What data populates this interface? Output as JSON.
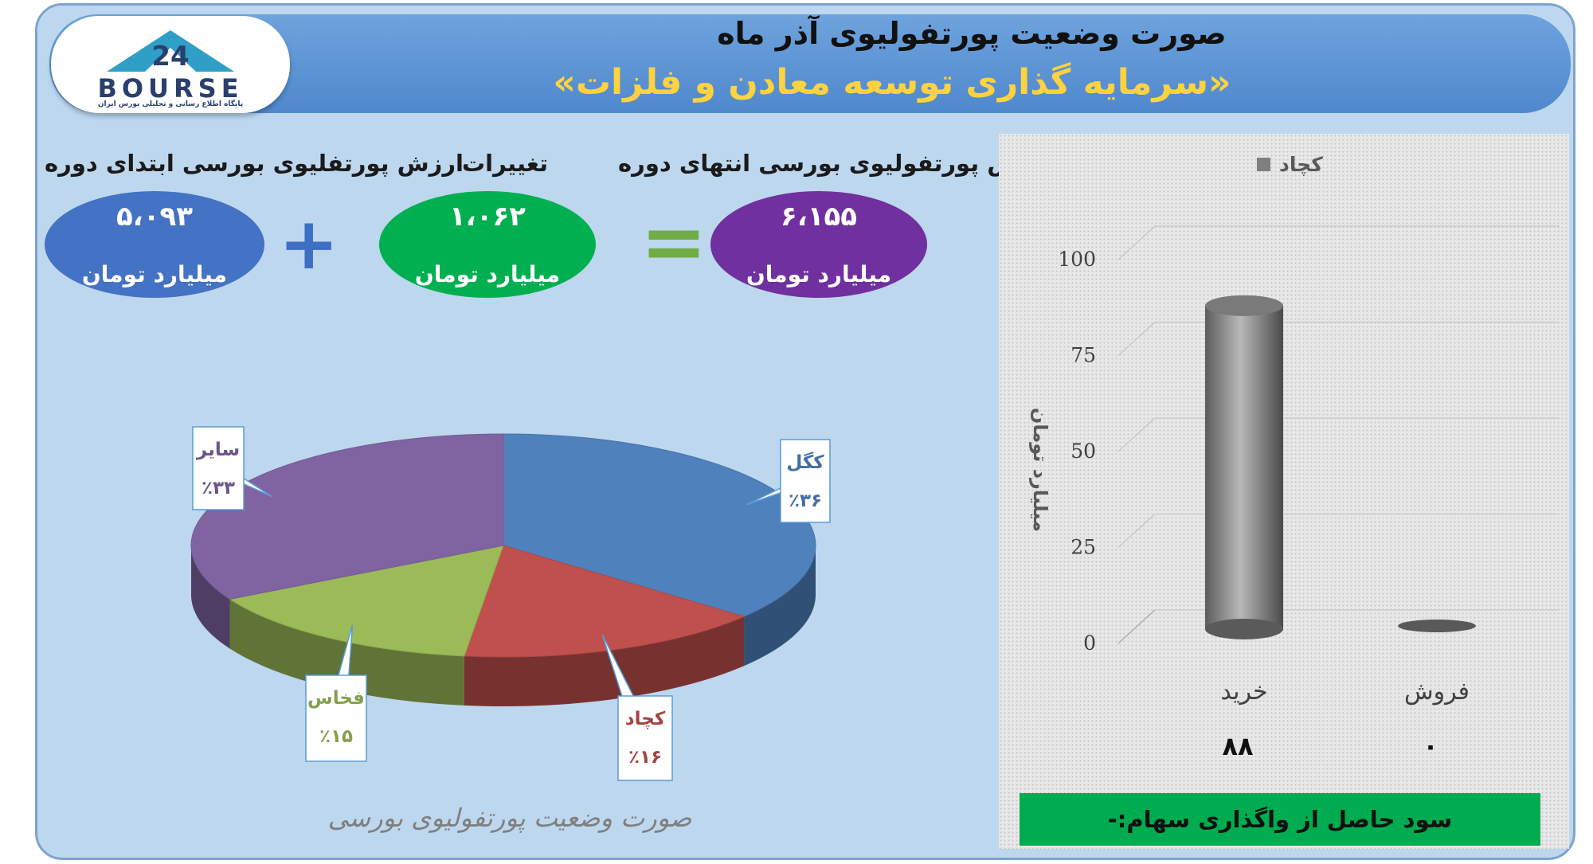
{
  "header": {
    "title": "صورت وضعیت پورتفولیوی آذر ماه",
    "subtitle": "«سرمایه گذاری توسعه معادن و فلزات»",
    "logo_text": "BOURSE",
    "logo_subtext": "پایگاه اطلاع رسانی و تحلیلی بورس ایران"
  },
  "summary": {
    "start": {
      "label": "ارزش پورتفلیوی بورسی ابتدای دوره",
      "value": "۵،۰۹۳",
      "unit": "میلیارد تومان",
      "color": "#4472c4"
    },
    "change": {
      "label": "تغییرات",
      "value": "۱،۰۶۲",
      "unit": "میلیارد تومان",
      "color": "#00b050"
    },
    "end": {
      "label": "ارزش پورتفولیوی بورسی انتهای دوره",
      "value": "۶،۱۵۵",
      "unit": "میلیارد تومان",
      "color": "#7030a0"
    },
    "plus_sign": "+",
    "equals_sign": "="
  },
  "chart_data": [
    {
      "type": "pie",
      "title": "صورت وضعیت پورتفولیوی بورسی",
      "slices": [
        {
          "label": "کگل",
          "value_label": "٪۳۶",
          "value": 36,
          "color": "#4f81bd"
        },
        {
          "label": "کچاد",
          "value_label": "٪۱۶",
          "value": 16,
          "color": "#c0504d"
        },
        {
          "label": "فخاس",
          "value_label": "٪۱۵",
          "value": 15,
          "color": "#9bbb59"
        },
        {
          "label": "سایر",
          "value_label": "٪۳۳",
          "value": 33,
          "color": "#8064a2"
        }
      ]
    },
    {
      "type": "bar",
      "legend": "کچاد",
      "categories": [
        "خرید",
        "فروش"
      ],
      "values": [
        88,
        0
      ],
      "data_labels": [
        "۸۸",
        "۰"
      ],
      "ylabel": "میلیارد تومان",
      "yticks": [
        0,
        25,
        50,
        75,
        100
      ],
      "ylim": [
        0,
        100
      ],
      "color": "#7f7f7f"
    }
  ],
  "footer_note": "سود حاصل از واگذاری سهام:-"
}
